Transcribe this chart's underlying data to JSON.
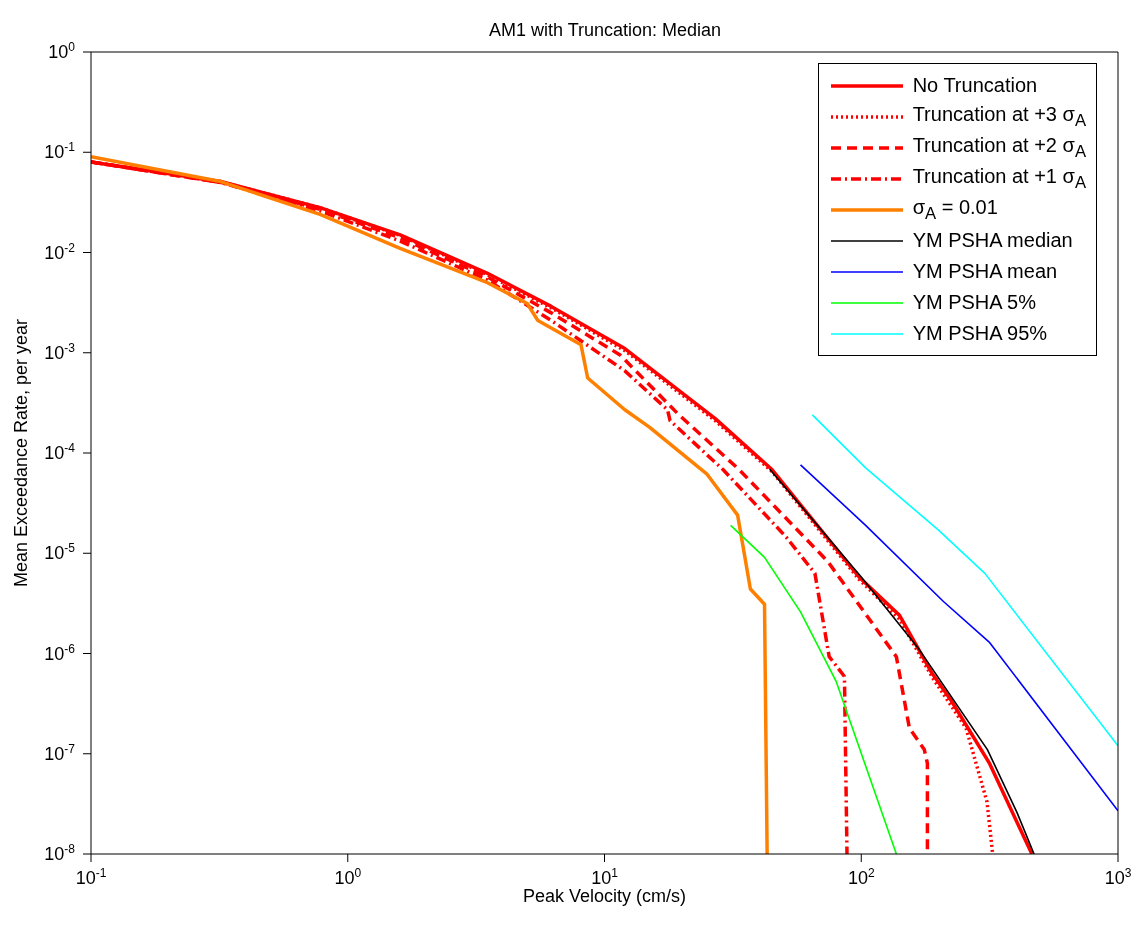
{
  "chart_data": {
    "type": "line",
    "title": "AM1 with Truncation: Median",
    "xlabel": "Peak Velocity (cm/s)",
    "ylabel": "Mean Exceedance Rate, per year",
    "log": "xy",
    "legend": "top right",
    "marker": "none",
    "xlim": [
      0.1,
      1000
    ],
    "ylim": [
      1e-08,
      1
    ],
    "xticks": [
      {
        "value": 0.1,
        "label": "10$^{-1}$"
      },
      {
        "value": 1,
        "label": "10$^{0}$"
      },
      {
        "value": 10,
        "label": "10$^{1}$"
      },
      {
        "value": 100,
        "label": "10$^{2}$"
      },
      {
        "value": 1000,
        "label": "10$^{3}$"
      }
    ],
    "yticks": [
      {
        "value": 1e-08,
        "label": "10$^{-8}$"
      },
      {
        "value": 1e-07,
        "label": "10$^{-7}$"
      },
      {
        "value": 1e-06,
        "label": "10$^{-6}$"
      },
      {
        "value": 1e-05,
        "label": "10$^{-5}$"
      },
      {
        "value": 0.0001,
        "label": "10$^{-4}$"
      },
      {
        "value": 0.001,
        "label": "10$^{-3}$"
      },
      {
        "value": 0.01,
        "label": "10$^{-2}$"
      },
      {
        "value": 0.1,
        "label": "10$^{-1}$"
      },
      {
        "value": 1,
        "label": "10$^{0}$"
      }
    ],
    "series": [
      {
        "name": "No Truncation",
        "color": "#ff0000",
        "line_style": "solid",
        "x": [
          0.1,
          0.32,
          0.78,
          1.6,
          3.5,
          6.2,
          12,
          27,
          45,
          98,
          141,
          189,
          224,
          316,
          462
        ],
        "values": [
          0.08,
          0.051,
          0.028,
          0.015,
          0.0062,
          0.0029,
          0.0011,
          0.00022,
          6.8e-05,
          5.8e-06,
          2.4e-06,
          6.3e-07,
          3.4e-07,
          8e-08,
          1e-08
        ]
      },
      {
        "name": "Truncation at +3 σ$_{A}$",
        "color": "#ff0000",
        "line_style": "dotted",
        "x": [
          0.1,
          0.32,
          0.78,
          1.6,
          3.5,
          6.2,
          12,
          27,
          45,
          98,
          141,
          189,
          256,
          309,
          325
        ],
        "values": [
          0.08,
          0.051,
          0.028,
          0.0148,
          0.006,
          0.0028,
          0.00105,
          0.00021,
          6.5e-05,
          5.5e-06,
          2.2e-06,
          5.8e-07,
          1.8e-07,
          3.3e-08,
          1e-08
        ]
      },
      {
        "name": "Truncation at +2 σ$_{A}$",
        "color": "#ff0000",
        "line_style": "dashed",
        "x": [
          0.1,
          0.32,
          0.78,
          1.6,
          3.5,
          6.2,
          11.5,
          19.5,
          33.5,
          74,
          137,
          154,
          176,
          181,
          181
        ],
        "values": [
          0.08,
          0.05,
          0.027,
          0.014,
          0.0057,
          0.0025,
          0.00095,
          0.00024,
          6.8e-05,
          8.3e-06,
          9.3e-07,
          1.8e-07,
          1.1e-07,
          8e-08,
          1e-08
        ]
      },
      {
        "name": "Truncation at +1 σ$_{A}$",
        "color": "#ff0000",
        "line_style": "dashdot",
        "x": [
          0.1,
          0.32,
          0.78,
          1.6,
          3.5,
          6.2,
          12,
          17.6,
          18,
          29,
          51,
          66,
          75,
          86,
          88
        ],
        "values": [
          0.08,
          0.05,
          0.026,
          0.013,
          0.0053,
          0.0021,
          0.00066,
          0.00027,
          0.00021,
          6.8e-05,
          1.45e-05,
          6.3e-06,
          9.3e-07,
          5.9e-07,
          1e-08
        ]
      },
      {
        "name": "σ$_{A}$ = 0.01",
        "color": "#ff8000",
        "line_style": "solid",
        "x": [
          0.1,
          0.32,
          0.78,
          1.6,
          3.5,
          5,
          5.5,
          8.1,
          8.6,
          12,
          15,
          25,
          33,
          37,
          42,
          43
        ],
        "values": [
          0.09,
          0.051,
          0.024,
          0.011,
          0.005,
          0.0031,
          0.0021,
          0.0012,
          0.00056,
          0.00027,
          0.00018,
          6.2e-05,
          2.4e-05,
          4.4e-06,
          3.1e-06,
          1e-08
        ]
      },
      {
        "name": "YM PSHA median",
        "color": "#000000",
        "line_style": "solid",
        "x": [
          44,
          100,
          168,
          310,
          404,
          471
        ],
        "values": [
          6.9e-05,
          5.8e-06,
          1.1e-06,
          1.1e-07,
          2.6e-08,
          1e-08
        ]
      },
      {
        "name": "YM PSHA mean",
        "color": "#0000ff",
        "line_style": "solid",
        "x": [
          58,
          104,
          209,
          315,
          1000
        ],
        "values": [
          7.6e-05,
          1.9e-05,
          3.3e-06,
          1.3e-06,
          2.7e-08
        ]
      },
      {
        "name": "YM PSHA 5%",
        "color": "#00ff00",
        "line_style": "solid",
        "x": [
          31,
          42,
          58,
          80,
          137
        ],
        "values": [
          1.9e-05,
          9.1e-06,
          2.6e-06,
          5.2e-07,
          1e-08
        ]
      },
      {
        "name": "YM PSHA 95%",
        "color": "#00ffff",
        "line_style": "solid",
        "x": [
          64.5,
          104,
          200,
          303,
          1000
        ],
        "values": [
          0.00024,
          7.1e-05,
          1.7e-05,
          6.3e-06,
          1.2e-07
        ]
      }
    ]
  }
}
